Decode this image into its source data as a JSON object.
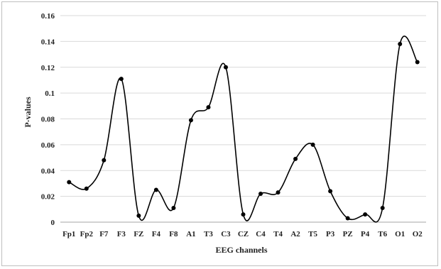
{
  "chart_data": {
    "type": "line",
    "title": "",
    "xlabel": "EEG channels",
    "ylabel": "P-values",
    "categories": [
      "Fp1",
      "Fp2",
      "F7",
      "F3",
      "FZ",
      "F4",
      "F8",
      "A1",
      "T3",
      "C3",
      "CZ",
      "C4",
      "T4",
      "A2",
      "T5",
      "P3",
      "PZ",
      "P4",
      "T6",
      "O1",
      "O2"
    ],
    "series": [
      {
        "values": [
          0.031,
          0.026,
          0.048,
          0.111,
          0.005,
          0.025,
          0.011,
          0.079,
          0.089,
          0.12,
          0.006,
          0.022,
          0.023,
          0.049,
          0.06,
          0.024,
          0.003,
          0.006,
          0.011,
          0.138,
          0.124
        ]
      }
    ],
    "ylim": [
      0,
      0.16
    ],
    "yticks": [
      "0",
      "0.02",
      "0.04",
      "0.06",
      "0.08",
      "0.1",
      "0.12",
      "0.14",
      "0.16"
    ],
    "grid": true,
    "smooth": true,
    "colors": {
      "line": "#000000",
      "marker": "#000000",
      "grid": "#d9d9d9"
    }
  }
}
